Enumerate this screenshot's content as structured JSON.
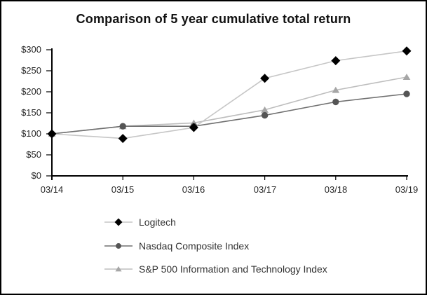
{
  "chart_data": {
    "type": "line",
    "title": "Comparison of 5 year cumulative total return",
    "categories": [
      "03/14",
      "03/15",
      "03/16",
      "03/17",
      "03/18",
      "03/19"
    ],
    "series": [
      {
        "name": "Logitech",
        "marker": "diamond",
        "marker_color": "#000000",
        "line_color": "#c6c6c6",
        "values": [
          100,
          89,
          115,
          232,
          274,
          297
        ]
      },
      {
        "name": "Nasdaq Composite Index",
        "marker": "circle",
        "marker_color": "#555555",
        "line_color": "#707070",
        "values": [
          100,
          118,
          118,
          144,
          176,
          195
        ]
      },
      {
        "name": "S&P 500 Information and Technology Index",
        "marker": "triangle",
        "marker_color": "#a6a6a6",
        "line_color": "#bdbdbd",
        "values": [
          100,
          118,
          126,
          157,
          204,
          235
        ]
      }
    ],
    "ylim": [
      0,
      300
    ],
    "y_tick_step": 50,
    "y_tick_labels": [
      "$0",
      "$50",
      "$100",
      "$150",
      "$200",
      "$250",
      "$300"
    ],
    "x_tick_labels": [
      "03/14",
      "03/15",
      "03/16",
      "03/17",
      "03/18",
      "03/19"
    ],
    "xlabel": "",
    "ylabel": "",
    "grid": false,
    "legend_position": "bottom-left",
    "axis_color": "#000000"
  }
}
